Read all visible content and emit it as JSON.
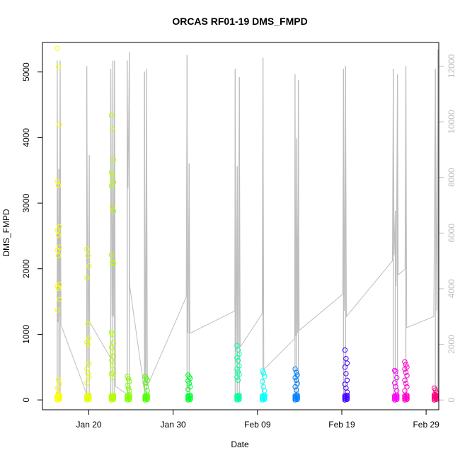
{
  "chart_data": {
    "type": "scatter",
    "title": "ORCAS RF01-19 DMS_FMPD",
    "xlabel": "Date",
    "ylabel": "DMS_FMPD",
    "x_axis": {
      "unit": "days since Jan 01 2016",
      "range": [
        13.5,
        60.5
      ],
      "ticks": [
        {
          "value": 19,
          "label": "Jan 20"
        },
        {
          "value": 29,
          "label": "Jan 30"
        },
        {
          "value": 39,
          "label": "Feb 09"
        },
        {
          "value": 49,
          "label": "Feb 19"
        },
        {
          "value": 59,
          "label": "Feb 29"
        }
      ]
    },
    "y_left": {
      "range": [
        -150,
        5450
      ],
      "ticks": [
        0,
        1000,
        2000,
        3000,
        4000,
        5000
      ],
      "tick_color": "#000000"
    },
    "y_right": {
      "range": [
        -350,
        12850
      ],
      "ticks": [
        0,
        2000,
        4000,
        6000,
        8000,
        10000,
        12000
      ],
      "tick_color": "#bebebe"
    },
    "grid": false,
    "secondary_line_color": "#bebebe",
    "flights": [
      {
        "x": 15.4,
        "color": "#FFFF00",
        "outliers": [
          5360,
          5080,
          4200,
          3330,
          3270,
          2640,
          2590,
          2510,
          2330,
          2280,
          2200,
          1760,
          1730,
          1700,
          1530,
          1370,
          310,
          240,
          180,
          100
        ]
      },
      {
        "x": 18.9,
        "color": "#E6FF00",
        "outliers": [
          2300,
          2200,
          2040,
          1860,
          1160,
          940,
          880,
          850,
          560,
          470,
          400,
          350,
          260
        ]
      },
      {
        "x": 21.8,
        "color": "#B3FF00",
        "outliers": [
          4340,
          4130,
          3660,
          3470,
          3410,
          3320,
          3260,
          2950,
          2880,
          2210,
          2100,
          2080,
          1030,
          1000,
          870,
          800,
          730,
          660,
          600,
          520,
          420,
          400,
          340
        ]
      },
      {
        "x": 23.7,
        "color": "#80FF00",
        "outliers": [
          360,
          320,
          280,
          220,
          180,
          140
        ]
      },
      {
        "x": 25.8,
        "color": "#4DFF00",
        "outliers": [
          360,
          330,
          300,
          260,
          200,
          140
        ]
      },
      {
        "x": 30.9,
        "color": "#00FF30",
        "outliers": [
          380,
          350,
          330,
          290,
          250,
          200,
          160
        ]
      },
      {
        "x": 36.7,
        "color": "#00FF99",
        "outliers": [
          830,
          760,
          700,
          640,
          600,
          520,
          470,
          430,
          390,
          350,
          300
        ]
      },
      {
        "x": 39.7,
        "color": "#00FFFF",
        "outliers": [
          440,
          410,
          360,
          280,
          200,
          140
        ]
      },
      {
        "x": 43.6,
        "color": "#0080FF",
        "outliers": [
          470,
          420,
          380,
          340,
          300,
          250,
          200,
          150
        ]
      },
      {
        "x": 49.5,
        "color": "#4000FF",
        "outliers": [
          760,
          630,
          560,
          500,
          400,
          300,
          240,
          180,
          120
        ]
      },
      {
        "x": 55.4,
        "color": "#FF00FF",
        "outliers": [
          450,
          430,
          340,
          260,
          200,
          140
        ]
      },
      {
        "x": 56.6,
        "color": "#FF00CC",
        "outliers": [
          580,
          540,
          500,
          470,
          420,
          370,
          300,
          250,
          200,
          140
        ]
      },
      {
        "x": 60.1,
        "color": "#FF0080",
        "outliers": [
          180,
          150,
          110,
          80,
          50
        ]
      }
    ],
    "gray_spikes": [
      {
        "x": 15.25,
        "value": 12200
      },
      {
        "x": 15.45,
        "value": 8300
      },
      {
        "x": 15.6,
        "value": 12200
      },
      {
        "x": 18.75,
        "value": 12000
      },
      {
        "x": 19.05,
        "value": 8800
      },
      {
        "x": 21.6,
        "value": 11900
      },
      {
        "x": 21.85,
        "value": 12200
      },
      {
        "x": 22.05,
        "value": 12200
      },
      {
        "x": 23.55,
        "value": 12200
      },
      {
        "x": 23.8,
        "value": 12500
      },
      {
        "x": 25.6,
        "value": 11800
      },
      {
        "x": 25.85,
        "value": 11900
      },
      {
        "x": 30.65,
        "value": 12400
      },
      {
        "x": 30.9,
        "value": 8500
      },
      {
        "x": 36.35,
        "value": 11900
      },
      {
        "x": 36.6,
        "value": 8400
      },
      {
        "x": 36.85,
        "value": 11600
      },
      {
        "x": 39.65,
        "value": 12300
      },
      {
        "x": 43.45,
        "value": 11700
      },
      {
        "x": 43.65,
        "value": 9400
      },
      {
        "x": 43.85,
        "value": 11500
      },
      {
        "x": 49.2,
        "value": 11900
      },
      {
        "x": 49.45,
        "value": 12000
      },
      {
        "x": 55.1,
        "value": 11900
      },
      {
        "x": 55.35,
        "value": 6800
      },
      {
        "x": 55.6,
        "value": 11700
      },
      {
        "x": 56.6,
        "value": 12000
      },
      {
        "x": 60.1,
        "value": 11900
      },
      {
        "x": 60.4,
        "value": 12600
      }
    ],
    "gray_path": [
      {
        "x": 15.25,
        "value": 0
      },
      {
        "x": 15.25,
        "value": 12200
      },
      {
        "x": 15.35,
        "value": 2800
      },
      {
        "x": 15.45,
        "value": 8300
      },
      {
        "x": 15.5,
        "value": 3000
      },
      {
        "x": 15.6,
        "value": 12200
      },
      {
        "x": 15.7,
        "value": 2700
      },
      {
        "x": 18.75,
        "value": 200
      },
      {
        "x": 18.75,
        "value": 12000
      },
      {
        "x": 18.9,
        "value": 1200
      },
      {
        "x": 19.05,
        "value": 8800
      },
      {
        "x": 19.1,
        "value": 2800
      },
      {
        "x": 21.6,
        "value": 1500
      },
      {
        "x": 21.6,
        "value": 11900
      },
      {
        "x": 21.75,
        "value": 3000
      },
      {
        "x": 21.85,
        "value": 12200
      },
      {
        "x": 21.95,
        "value": 3000
      },
      {
        "x": 22.05,
        "value": 12200
      },
      {
        "x": 22.15,
        "value": 500
      },
      {
        "x": 23.55,
        "value": 200
      },
      {
        "x": 23.55,
        "value": 12200
      },
      {
        "x": 23.65,
        "value": 7600
      },
      {
        "x": 23.8,
        "value": 12500
      },
      {
        "x": 23.85,
        "value": 4100
      },
      {
        "x": 25.6,
        "value": 300
      },
      {
        "x": 25.6,
        "value": 11800
      },
      {
        "x": 25.7,
        "value": 600
      },
      {
        "x": 25.85,
        "value": 11900
      },
      {
        "x": 25.95,
        "value": 500
      },
      {
        "x": 30.55,
        "value": 3700
      },
      {
        "x": 30.65,
        "value": 12400
      },
      {
        "x": 30.75,
        "value": 2400
      },
      {
        "x": 30.9,
        "value": 8500
      },
      {
        "x": 31.0,
        "value": 2400
      },
      {
        "x": 36.3,
        "value": 3200
      },
      {
        "x": 36.35,
        "value": 11900
      },
      {
        "x": 36.45,
        "value": 1800
      },
      {
        "x": 36.6,
        "value": 8400
      },
      {
        "x": 36.7,
        "value": 1900
      },
      {
        "x": 36.85,
        "value": 11600
      },
      {
        "x": 36.95,
        "value": 1900
      },
      {
        "x": 39.55,
        "value": 3100
      },
      {
        "x": 39.65,
        "value": 12300
      },
      {
        "x": 39.75,
        "value": 1100
      },
      {
        "x": 43.4,
        "value": 2200
      },
      {
        "x": 43.45,
        "value": 11700
      },
      {
        "x": 43.55,
        "value": 2300
      },
      {
        "x": 43.65,
        "value": 9400
      },
      {
        "x": 43.75,
        "value": 2400
      },
      {
        "x": 43.85,
        "value": 11500
      },
      {
        "x": 43.95,
        "value": 2500
      },
      {
        "x": 49.1,
        "value": 3800
      },
      {
        "x": 49.2,
        "value": 11900
      },
      {
        "x": 49.3,
        "value": 3200
      },
      {
        "x": 49.45,
        "value": 12000
      },
      {
        "x": 49.55,
        "value": 3000
      },
      {
        "x": 55.0,
        "value": 5000
      },
      {
        "x": 55.1,
        "value": 11900
      },
      {
        "x": 55.2,
        "value": 5200
      },
      {
        "x": 55.35,
        "value": 6800
      },
      {
        "x": 55.45,
        "value": 4100
      },
      {
        "x": 55.6,
        "value": 11700
      },
      {
        "x": 55.7,
        "value": 4500
      },
      {
        "x": 56.5,
        "value": 4700
      },
      {
        "x": 56.6,
        "value": 12000
      },
      {
        "x": 56.7,
        "value": 2600
      },
      {
        "x": 59.9,
        "value": 3000
      },
      {
        "x": 60.1,
        "value": 11900
      },
      {
        "x": 60.25,
        "value": 3200
      },
      {
        "x": 60.4,
        "value": 12600
      },
      {
        "x": 60.45,
        "value": 1000
      }
    ]
  }
}
